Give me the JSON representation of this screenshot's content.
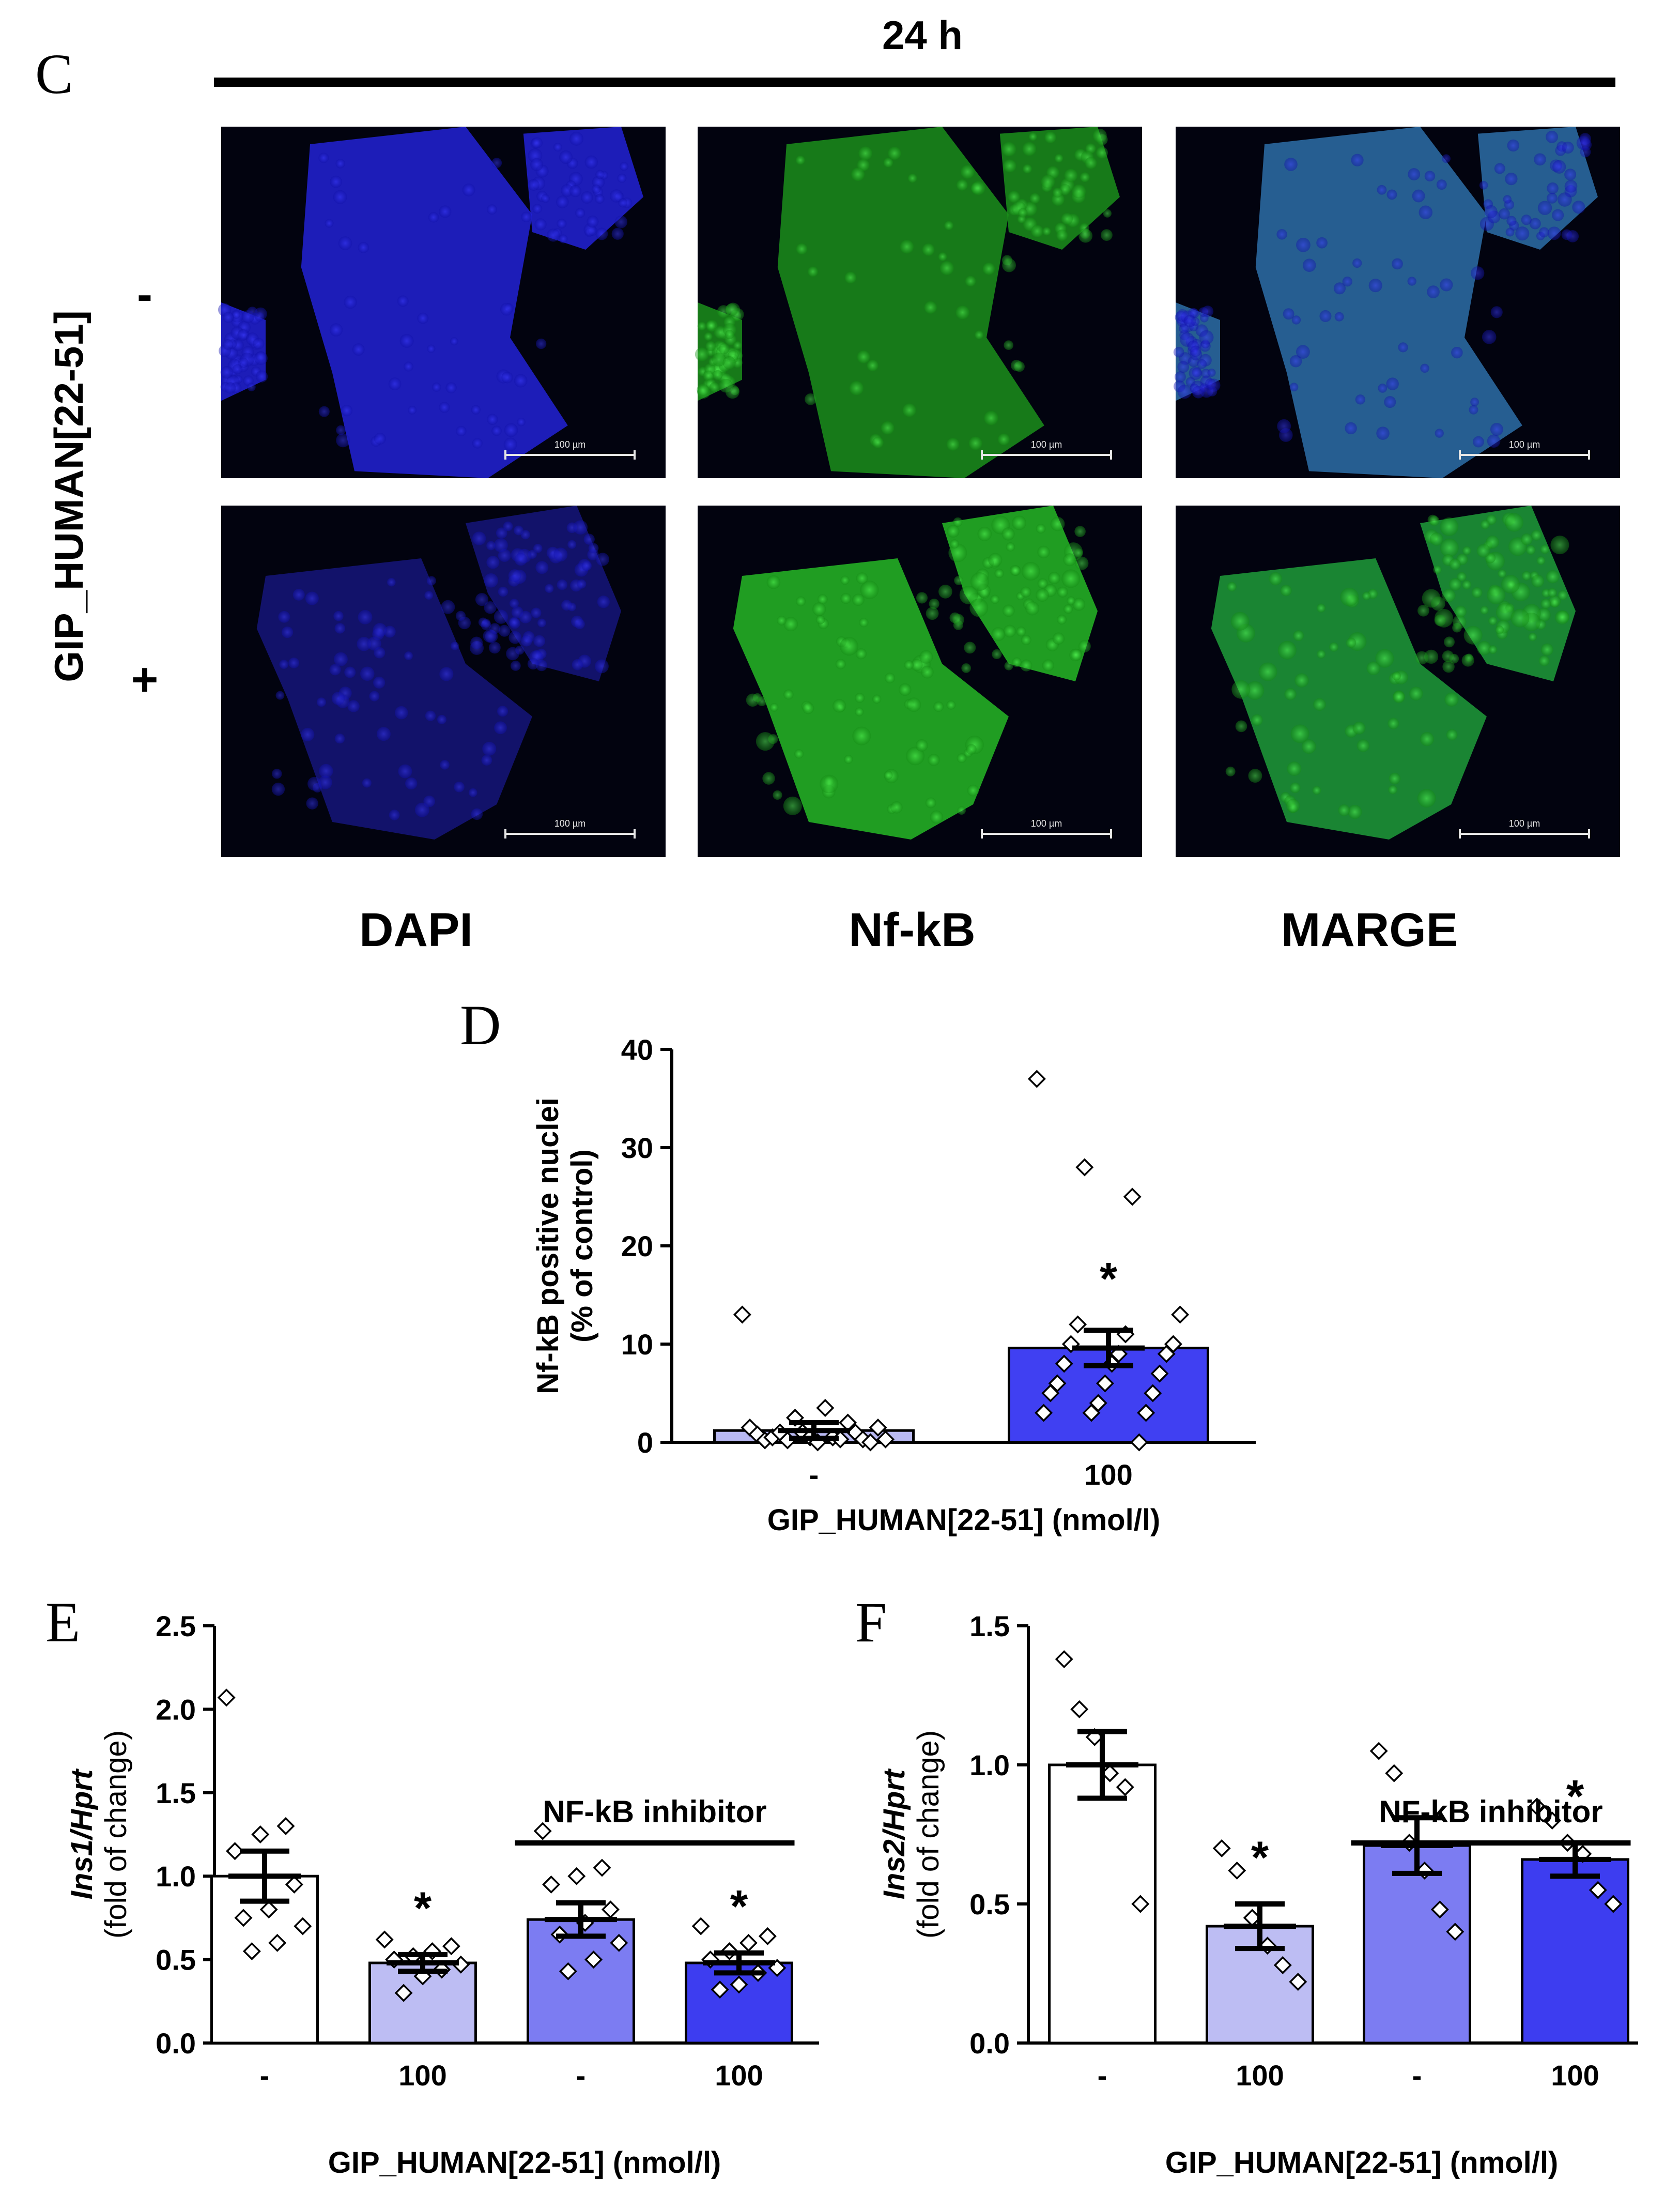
{
  "panel_c": {
    "letter": "C",
    "time_label": "24 h",
    "row_factor_label": "GIP_HUMAN[22-51]",
    "row_minus": "-",
    "row_plus": "+",
    "columns": [
      "DAPI",
      "Nf-kB",
      "MARGE"
    ],
    "scale_bar_label": "100 µm",
    "colors": {
      "dapi": "#1a1ad8",
      "nfkb": "#2ee02e"
    }
  },
  "chart_data": [
    {
      "panel": "D",
      "type": "bar",
      "ylabel_line1": "Nf-kB positive nuclei",
      "ylabel_line2": "(% of control)",
      "xlabel": "GIP_HUMAN[22-51] (nmol/l)",
      "ylim": [
        0,
        40
      ],
      "yticks": [
        0,
        10,
        20,
        30,
        40
      ],
      "ytick_labels": [
        "0",
        "10",
        "20",
        "30",
        "40"
      ],
      "categories": [
        "-",
        "100"
      ],
      "values": [
        1.2,
        9.6
      ],
      "sem": [
        0.8,
        1.8
      ],
      "colors": [
        "#b9b9f2",
        "#4040f2"
      ],
      "significance": [
        "",
        "*"
      ],
      "points": [
        [
          13,
          2.5,
          2,
          1.5,
          1,
          1,
          0.8,
          0.5,
          0.3,
          0.2,
          0,
          0,
          0.5,
          3.5,
          1.5,
          1,
          0.5,
          0.3,
          0.2,
          0.3
        ],
        [
          37,
          28,
          25,
          13,
          12,
          11,
          10,
          10,
          9,
          9,
          8,
          8,
          7,
          6,
          6,
          5,
          5,
          4,
          3,
          3,
          3,
          0
        ]
      ],
      "inhibitor_label": ""
    },
    {
      "panel": "E",
      "type": "bar",
      "ylabel_italic": "Ins1/Hprt",
      "ylabel_line2": "(fold of change)",
      "xlabel": "GIP_HUMAN[22-51] (nmol/l)",
      "ylim": [
        0,
        2.5
      ],
      "yticks": [
        0,
        0.5,
        1,
        1.5,
        2,
        2.5
      ],
      "ytick_labels": [
        "0.0",
        "0.5",
        "1.0",
        "1.5",
        "2.0",
        "2.5"
      ],
      "categories": [
        "-",
        "100",
        "-",
        "100"
      ],
      "values": [
        1.0,
        0.48,
        0.74,
        0.48
      ],
      "sem": [
        0.15,
        0.05,
        0.1,
        0.06
      ],
      "colors": [
        "#ffffff",
        "#bdbdf3",
        "#7c7cf2",
        "#3d3df0"
      ],
      "significance": [
        "",
        "*",
        "",
        "*"
      ],
      "points": [
        [
          2.07,
          1.3,
          1.25,
          1.15,
          0.95,
          0.8,
          0.75,
          0.7,
          0.6,
          0.55
        ],
        [
          0.62,
          0.58,
          0.55,
          0.52,
          0.5,
          0.47,
          0.44,
          0.4,
          0.3
        ],
        [
          1.27,
          1.05,
          1.0,
          0.95,
          0.8,
          0.72,
          0.65,
          0.6,
          0.5,
          0.43
        ],
        [
          0.7,
          0.64,
          0.6,
          0.55,
          0.5,
          0.45,
          0.42,
          0.35,
          0.32
        ]
      ],
      "inhibitor_label": "NF-kB inhibitor"
    },
    {
      "panel": "F",
      "type": "bar",
      "ylabel_italic": "Ins2/Hprt",
      "ylabel_line2": "(fold of change)",
      "xlabel": "GIP_HUMAN[22-51] (nmol/l)",
      "ylim": [
        0,
        1.5
      ],
      "yticks": [
        0,
        0.5,
        1,
        1.5
      ],
      "ytick_labels": [
        "0.0",
        "0.5",
        "1.0",
        "1.5"
      ],
      "categories": [
        "-",
        "100",
        "-",
        "100"
      ],
      "values": [
        1.0,
        0.42,
        0.71,
        0.66
      ],
      "sem": [
        0.12,
        0.08,
        0.1,
        0.06
      ],
      "colors": [
        "#ffffff",
        "#bdbdf3",
        "#7c7cf2",
        "#3d3df0"
      ],
      "significance": [
        "",
        "*",
        "",
        "*"
      ],
      "points": [
        [
          1.38,
          1.2,
          1.1,
          0.97,
          0.92,
          0.5
        ],
        [
          0.7,
          0.62,
          0.45,
          0.35,
          0.28,
          0.22
        ],
        [
          1.05,
          0.97,
          0.72,
          0.62,
          0.48,
          0.4
        ],
        [
          0.85,
          0.8,
          0.72,
          0.68,
          0.55,
          0.5
        ]
      ],
      "inhibitor_label": "NF-kB inhibitor"
    }
  ]
}
